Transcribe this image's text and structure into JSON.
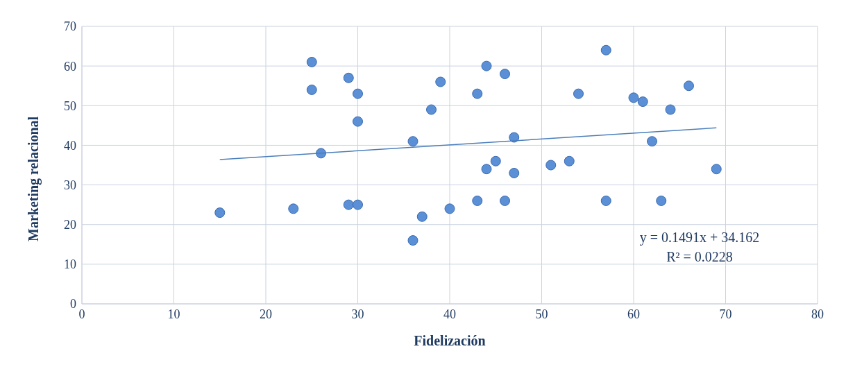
{
  "chart_data": {
    "type": "scatter",
    "xlabel": "Fidelización",
    "ylabel": "Marketing relacional",
    "xlim": [
      0,
      80
    ],
    "xticks": [
      0,
      10,
      20,
      30,
      40,
      50,
      60,
      70,
      80
    ],
    "ylim": [
      0,
      70
    ],
    "yticks": [
      0,
      10,
      20,
      30,
      40,
      50,
      60,
      70
    ],
    "grid": true,
    "series": [
      {
        "marker": "circle",
        "color": "#5b8fd6",
        "x": [
          15,
          23,
          25,
          25,
          26,
          29,
          29,
          30,
          30,
          30,
          36,
          36,
          37,
          39,
          38,
          40,
          43,
          43,
          44,
          44,
          45,
          46,
          46,
          47,
          47,
          51,
          53,
          54,
          57,
          57,
          60,
          61,
          62,
          63,
          64,
          66,
          69
        ],
        "values": [
          23,
          24,
          61,
          54,
          38,
          57,
          25,
          53,
          46,
          25,
          41,
          16,
          22,
          56,
          49,
          24,
          53,
          26,
          60,
          34,
          36,
          58,
          26,
          42,
          33,
          35,
          36,
          53,
          64,
          26,
          52,
          51,
          41,
          26,
          49,
          55,
          34
        ]
      },
      {
        "type": "line",
        "marker": "none",
        "color": "#4a7ebb",
        "x": [
          15,
          69
        ],
        "values": [
          36.4,
          44.4
        ]
      }
    ],
    "annotations": [
      "y = 0.1491x + 34.162",
      "R² = 0.0228"
    ]
  }
}
